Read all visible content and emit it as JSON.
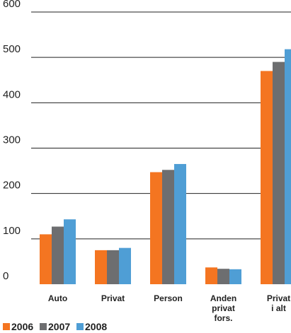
{
  "chart_data": {
    "type": "bar",
    "categories": [
      "Auto",
      "Privat",
      "Person",
      "Anden privat fors.",
      "Privat i alt"
    ],
    "category_label_lines": [
      [
        "Auto"
      ],
      [
        "Privat"
      ],
      [
        "Person"
      ],
      [
        "Anden",
        "privat",
        "fors."
      ],
      [
        "Privat",
        "i alt"
      ]
    ],
    "series": [
      {
        "name": "2006",
        "color": "#f47521",
        "values": [
          110,
          75,
          247,
          37,
          470
        ]
      },
      {
        "name": "2007",
        "color": "#6d6e70",
        "values": [
          127,
          75,
          252,
          34,
          490
        ]
      },
      {
        "name": "2008",
        "color": "#4f9ed5",
        "values": [
          143,
          80,
          265,
          33,
          518
        ]
      }
    ],
    "ylim": [
      0,
      600
    ],
    "yticks": [
      0,
      100,
      200,
      300,
      400,
      500,
      600
    ],
    "grid": true,
    "legend_position": "bottom-left",
    "title": "",
    "xlabel": "",
    "ylabel": ""
  }
}
